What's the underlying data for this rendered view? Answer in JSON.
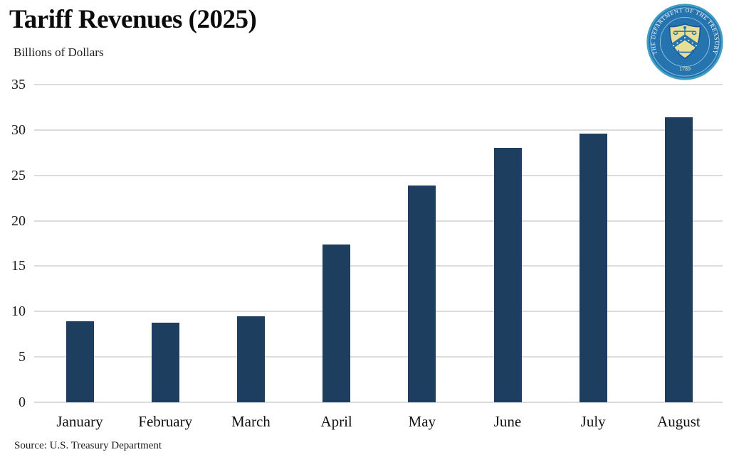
{
  "header": {
    "title": "Tariff Revenues (2025)",
    "subtitle": "Billions of Dollars"
  },
  "seal": {
    "ring_text": "THE DEPARTMENT OF THE TREASURY",
    "year": "1789",
    "ring_color": "#2574b0",
    "edge_color": "#3fa0c4",
    "shield_color": "#e6df96"
  },
  "chart_data": {
    "type": "bar",
    "title": "Tariff Revenues (2025)",
    "subtitle": "Billions of Dollars",
    "ylabel": "Billions of Dollars",
    "xlabel": "",
    "categories": [
      "January",
      "February",
      "March",
      "April",
      "May",
      "June",
      "July",
      "August"
    ],
    "values": [
      8.9,
      8.8,
      9.5,
      17.4,
      23.9,
      28.0,
      29.6,
      31.4
    ],
    "ylim": [
      0,
      35
    ],
    "yticks": [
      0,
      5,
      10,
      15,
      20,
      25,
      30,
      35
    ],
    "grid": true,
    "legend": false,
    "bar_color": "#1d3e5f",
    "gridline_color": "#dcdcdc"
  },
  "source": {
    "label": "Source: U.S. Treasury Department"
  }
}
